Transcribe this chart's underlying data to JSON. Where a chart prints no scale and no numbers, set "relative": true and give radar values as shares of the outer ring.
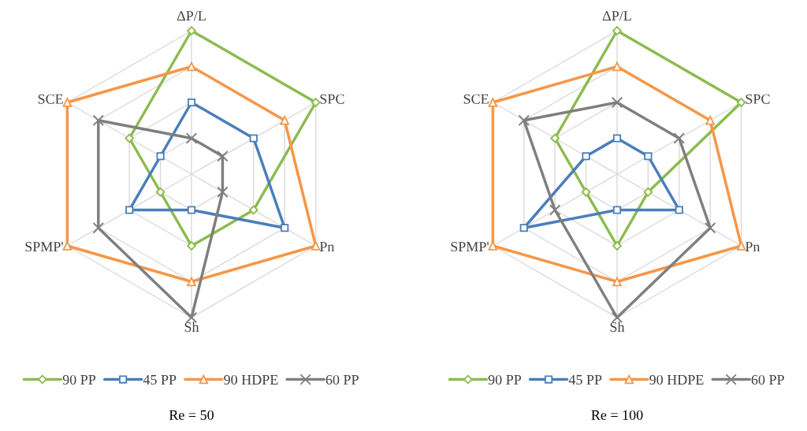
{
  "chart_data": [
    {
      "type": "radar",
      "title": "Re = 50",
      "relative": true,
      "grid": true,
      "legend": "bottom",
      "categories": [
        "ΔP/L",
        "SPC",
        "Pn",
        "Sh",
        "SPMP'",
        "SCE"
      ],
      "series": [
        {
          "name": "90 PP",
          "color": "#8cbb4e",
          "marker": "diamond",
          "values": [
            1.0,
            1.0,
            0.5,
            0.5,
            0.25,
            0.5
          ]
        },
        {
          "name": "45 PP",
          "color": "#4a7ebb",
          "marker": "square",
          "values": [
            0.5,
            0.5,
            0.75,
            0.25,
            0.5,
            0.25
          ]
        },
        {
          "name": "90 HDPE",
          "color": "#f79646",
          "marker": "triangle",
          "values": [
            0.75,
            0.75,
            1.0,
            0.75,
            1.0,
            1.0
          ]
        },
        {
          "name": "60 PP",
          "color": "#7f7f7f",
          "marker": "cross",
          "values": [
            0.25,
            0.25,
            0.25,
            1.0,
            0.75,
            0.75
          ]
        }
      ]
    },
    {
      "type": "radar",
      "title": "Re = 100",
      "relative": true,
      "grid": true,
      "legend": "bottom",
      "categories": [
        "ΔP/L",
        "SPC",
        "Pn",
        "Sh",
        "SPMP'",
        "SCE"
      ],
      "series": [
        {
          "name": "90 PP",
          "color": "#8cbb4e",
          "marker": "diamond",
          "values": [
            1.0,
            1.0,
            0.25,
            0.5,
            0.25,
            0.5
          ]
        },
        {
          "name": "45 PP",
          "color": "#4a7ebb",
          "marker": "square",
          "values": [
            0.25,
            0.25,
            0.5,
            0.25,
            0.75,
            0.25
          ]
        },
        {
          "name": "90 HDPE",
          "color": "#f79646",
          "marker": "triangle",
          "values": [
            0.75,
            0.75,
            1.0,
            0.75,
            1.0,
            1.0
          ]
        },
        {
          "name": "60 PP",
          "color": "#7f7f7f",
          "marker": "cross",
          "values": [
            0.5,
            0.5,
            0.75,
            1.0,
            0.5,
            0.75
          ]
        }
      ]
    }
  ]
}
